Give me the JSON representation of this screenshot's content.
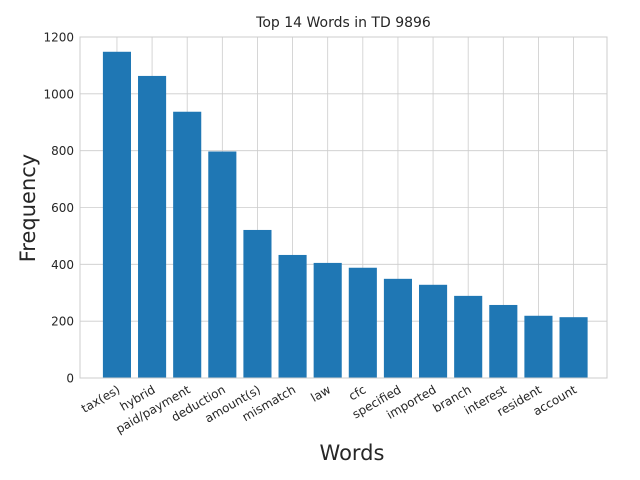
{
  "chart_data": {
    "type": "bar",
    "title": "Top 14 Words in TD 9896",
    "xlabel": "Words",
    "ylabel": "Frequency",
    "categories": [
      "tax(es)",
      "hybrid",
      "paid/payment",
      "deduction",
      "amount(s)",
      "mismatch",
      "law",
      "cfc",
      "specified",
      "imported",
      "branch",
      "interest",
      "resident",
      "account"
    ],
    "values": [
      1148,
      1063,
      937,
      797,
      521,
      433,
      405,
      388,
      349,
      328,
      289,
      257,
      219,
      214
    ],
    "ylim": [
      0,
      1200
    ],
    "yticks": [
      0,
      200,
      400,
      600,
      800,
      1000,
      1200
    ],
    "grid": true,
    "bar_color": "#1f77b4"
  }
}
